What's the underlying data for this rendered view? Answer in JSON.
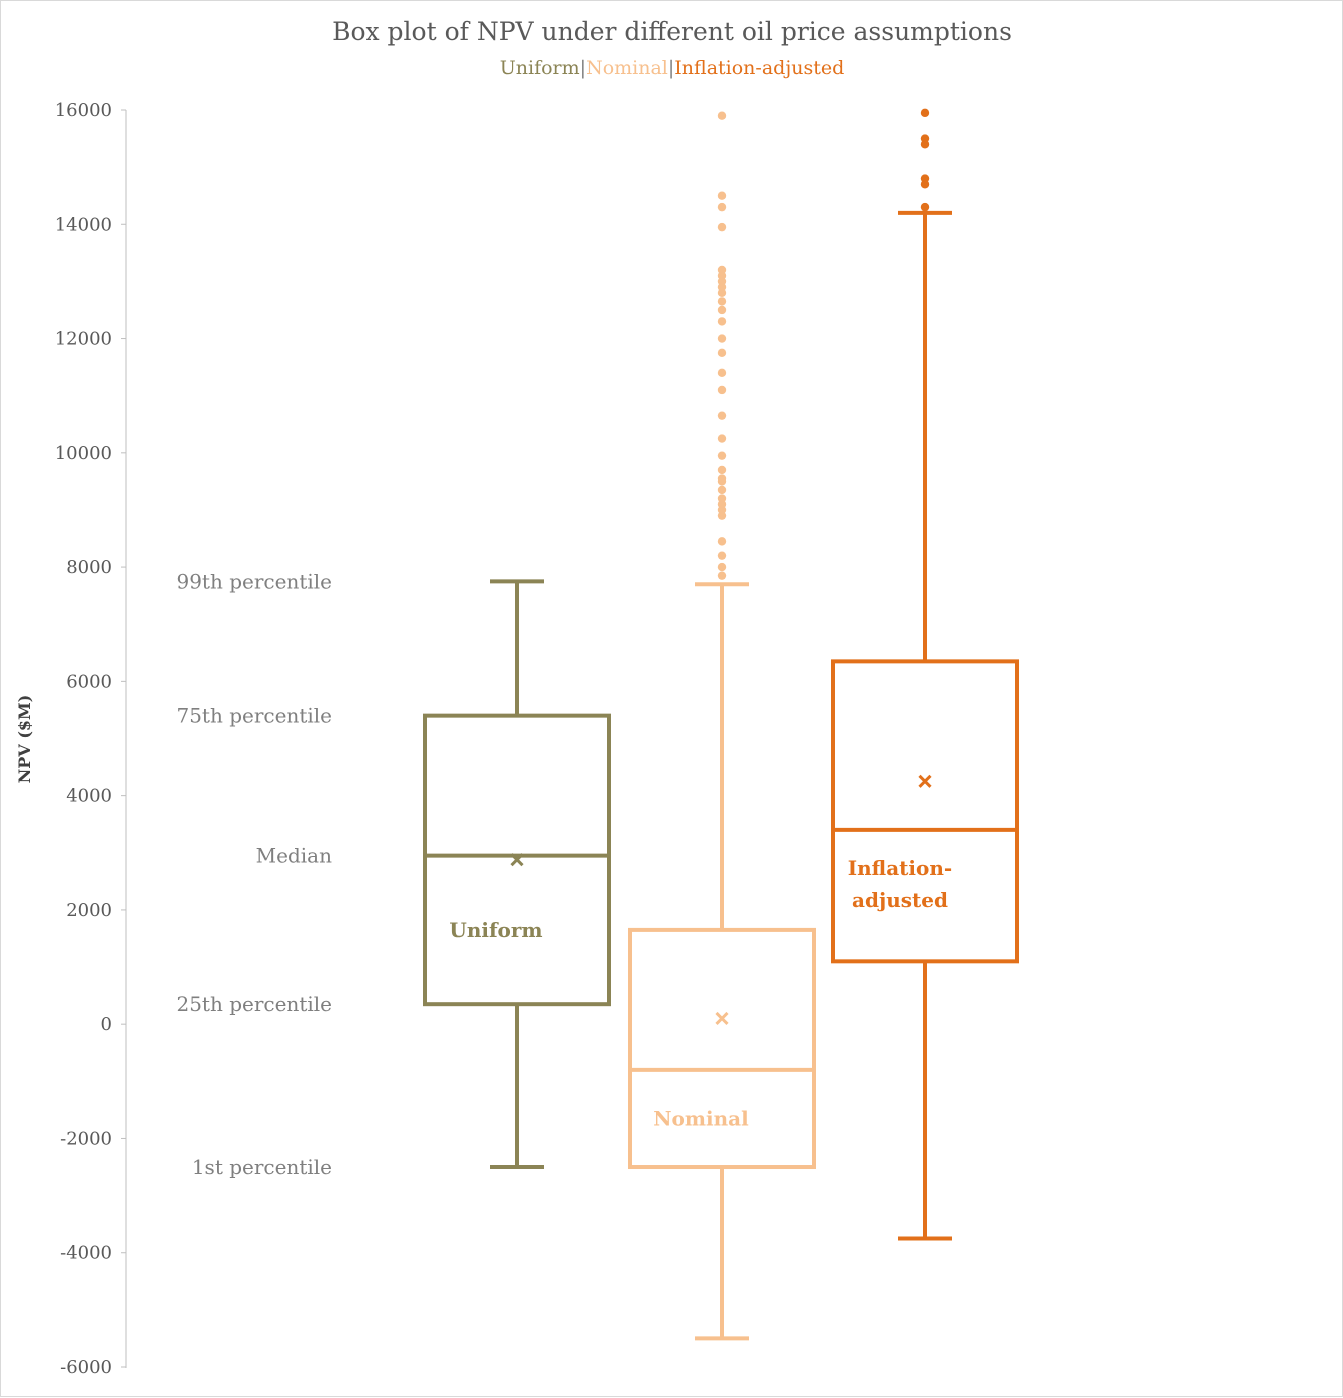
{
  "colors": {
    "uniform": "#8b8455",
    "nominal": "#f7c08e",
    "inflation": "#e2701a",
    "axis": "#bfbfbf",
    "text": "#595959",
    "annotation": "#7f7f7f"
  },
  "chart_data": {
    "type": "box",
    "title": "Box plot of NPV under different oil price assumptions",
    "subtitle": {
      "items": [
        "Uniform",
        "Nominal",
        "Inflation-adjusted"
      ],
      "separator": "|"
    },
    "ylabel": "NPV ($M)",
    "ylim": [
      -6000,
      16000
    ],
    "yticks": [
      16000,
      14000,
      12000,
      10000,
      8000,
      6000,
      4000,
      2000,
      0,
      -2000,
      -4000,
      -6000
    ],
    "grid": false,
    "annotations": [
      {
        "text": "99th percentile",
        "value": 7750
      },
      {
        "text": "75th percentile",
        "value": 5400
      },
      {
        "text": "Median",
        "value": 2950
      },
      {
        "text": "25th percentile",
        "value": 350
      },
      {
        "text": "1st percentile",
        "value": -2500
      }
    ],
    "series": [
      {
        "name": "Uniform",
        "color_key": "uniform",
        "whisker_low": -2500,
        "q1": 350,
        "median": 2950,
        "q3": 5400,
        "whisker_high": 7750,
        "mean": 2880,
        "outliers": [],
        "label_lines": [
          "Uniform"
        ],
        "label_value": 1650
      },
      {
        "name": "Nominal",
        "color_key": "nominal",
        "whisker_low": -5500,
        "q1": -2500,
        "median": -800,
        "q3": 1650,
        "whisker_high": 7700,
        "mean": 100,
        "outliers": [
          7850,
          8000,
          8200,
          8450,
          8900,
          9000,
          9100,
          9200,
          9350,
          9500,
          9550,
          9700,
          9950,
          10250,
          10650,
          11100,
          11400,
          11750,
          12000,
          12300,
          12500,
          12650,
          12800,
          12900,
          13000,
          13100,
          13200,
          13950,
          14300,
          14500,
          15900
        ],
        "label_lines": [
          "Nominal"
        ],
        "label_value": -1650
      },
      {
        "name": "Inflation-adjusted",
        "color_key": "inflation",
        "whisker_low": -3750,
        "q1": 1100,
        "median": 3400,
        "q3": 6350,
        "whisker_high": 14200,
        "mean": 4250,
        "outliers": [
          14300,
          14700,
          14800,
          15400,
          15500,
          15950
        ],
        "label_lines": [
          "Inflation-",
          "adjusted"
        ],
        "label_value": 2450
      }
    ]
  }
}
